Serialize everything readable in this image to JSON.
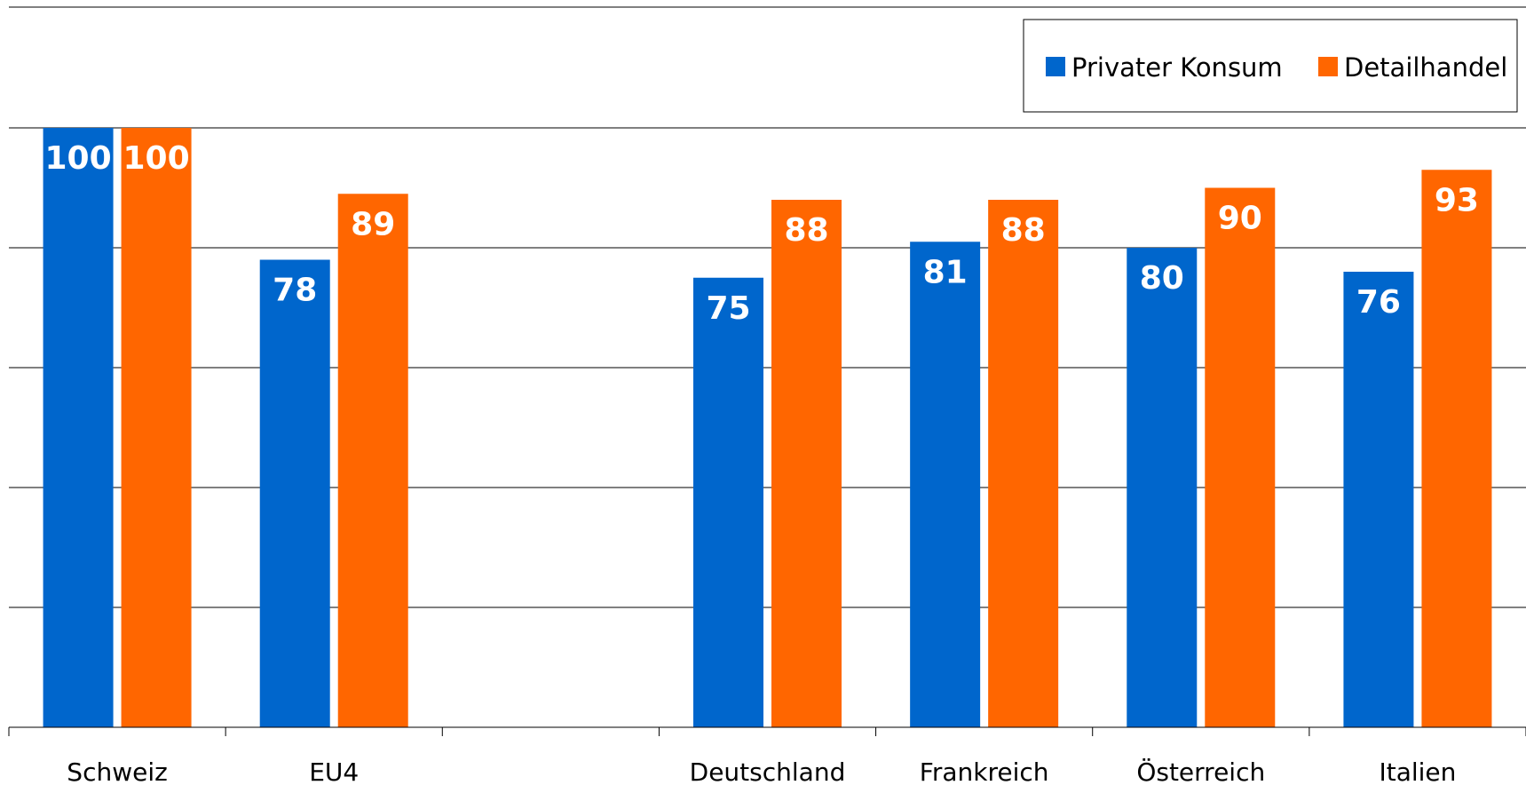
{
  "chart_data": {
    "type": "bar",
    "categories": [
      "Schweiz",
      "EU4",
      "",
      "Deutschland",
      "Frankreich",
      "Österreich",
      "Italien"
    ],
    "series": [
      {
        "name": "Privater Konsum",
        "color": "#0066CC",
        "values": [
          100,
          78,
          null,
          75,
          81,
          80,
          76
        ]
      },
      {
        "name": "Detailhandel",
        "color": "#FF6600",
        "values": [
          100,
          89,
          null,
          88,
          88,
          90,
          93
        ]
      }
    ],
    "ylim": [
      0,
      100
    ],
    "grid": true,
    "legend_position": "top-right",
    "title": "",
    "xlabel": "",
    "ylabel": ""
  }
}
